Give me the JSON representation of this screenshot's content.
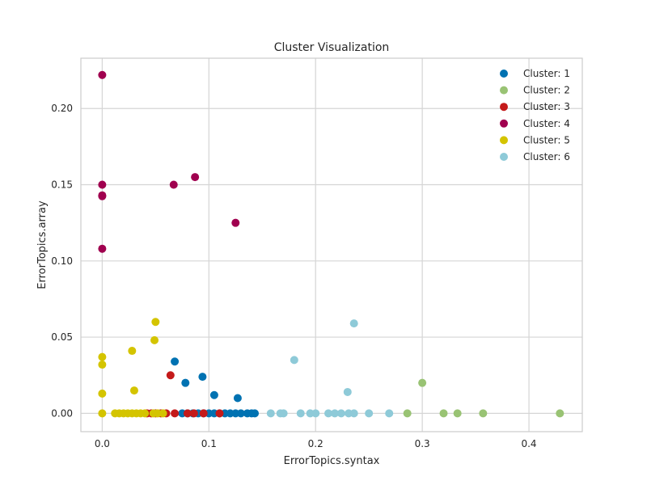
{
  "chart_data": {
    "type": "scatter",
    "title": "Cluster Visualization",
    "xlabel": "ErrorTopics.syntax",
    "ylabel": "ErrorTopics.array",
    "xlim": [
      -0.02,
      0.45
    ],
    "ylim": [
      -0.012,
      0.233
    ],
    "x_ticks": [
      0.0,
      0.1,
      0.2,
      0.3,
      0.4
    ],
    "x_tick_labels": [
      "0.0",
      "0.1",
      "0.2",
      "0.3",
      "0.4"
    ],
    "y_ticks": [
      0.0,
      0.05,
      0.1,
      0.15,
      0.2
    ],
    "y_tick_labels": [
      "0.00",
      "0.05",
      "0.10",
      "0.15",
      "0.20"
    ],
    "grid": true,
    "legend_position": "top-right",
    "series": [
      {
        "name": "Cluster: 1",
        "color": "#0072b2",
        "points": [
          [
            0.068,
            0.034
          ],
          [
            0.078,
            0.02
          ],
          [
            0.094,
            0.024
          ],
          [
            0.105,
            0.012
          ],
          [
            0.127,
            0.01
          ],
          [
            0.075,
            0.0
          ],
          [
            0.08,
            0.0
          ],
          [
            0.085,
            0.0
          ],
          [
            0.09,
            0.0
          ],
          [
            0.095,
            0.0
          ],
          [
            0.1,
            0.0
          ],
          [
            0.105,
            0.0
          ],
          [
            0.11,
            0.0
          ],
          [
            0.115,
            0.0
          ],
          [
            0.12,
            0.0
          ],
          [
            0.125,
            0.0
          ],
          [
            0.13,
            0.0
          ],
          [
            0.136,
            0.0
          ],
          [
            0.14,
            0.0
          ],
          [
            0.143,
            0.0
          ]
        ]
      },
      {
        "name": "Cluster: 2",
        "color": "#99c374",
        "points": [
          [
            0.3,
            0.02
          ],
          [
            0.286,
            0.0
          ],
          [
            0.32,
            0.0
          ],
          [
            0.333,
            0.0
          ],
          [
            0.357,
            0.0
          ],
          [
            0.429,
            0.0
          ]
        ]
      },
      {
        "name": "Cluster: 3",
        "color": "#c41a1a",
        "points": [
          [
            0.064,
            0.025
          ],
          [
            0.042,
            0.0
          ],
          [
            0.046,
            0.0
          ],
          [
            0.05,
            0.0
          ],
          [
            0.055,
            0.0
          ],
          [
            0.06,
            0.0
          ],
          [
            0.068,
            0.0
          ],
          [
            0.08,
            0.0
          ],
          [
            0.086,
            0.0
          ],
          [
            0.095,
            0.0
          ],
          [
            0.11,
            0.0
          ]
        ]
      },
      {
        "name": "Cluster: 4",
        "color": "#a0004f",
        "points": [
          [
            0.0,
            0.222
          ],
          [
            0.0,
            0.15
          ],
          [
            0.0,
            0.143
          ],
          [
            0.0,
            0.1425
          ],
          [
            0.0,
            0.108
          ],
          [
            0.067,
            0.15
          ],
          [
            0.087,
            0.155
          ],
          [
            0.125,
            0.125
          ]
        ]
      },
      {
        "name": "Cluster: 5",
        "color": "#d4c400",
        "points": [
          [
            0.0,
            0.037
          ],
          [
            0.0,
            0.032
          ],
          [
            0.0,
            0.013
          ],
          [
            0.0,
            0.0
          ],
          [
            0.028,
            0.041
          ],
          [
            0.03,
            0.015
          ],
          [
            0.05,
            0.06
          ],
          [
            0.049,
            0.048
          ],
          [
            0.012,
            0.0
          ],
          [
            0.016,
            0.0
          ],
          [
            0.02,
            0.0
          ],
          [
            0.024,
            0.0
          ],
          [
            0.028,
            0.0
          ],
          [
            0.032,
            0.0
          ],
          [
            0.036,
            0.0
          ],
          [
            0.04,
            0.0
          ],
          [
            0.048,
            0.0
          ],
          [
            0.052,
            0.0
          ],
          [
            0.057,
            0.0
          ]
        ]
      },
      {
        "name": "Cluster: 6",
        "color": "#8ecad8",
        "points": [
          [
            0.18,
            0.035
          ],
          [
            0.236,
            0.059
          ],
          [
            0.23,
            0.014
          ],
          [
            0.158,
            0.0
          ],
          [
            0.167,
            0.0
          ],
          [
            0.17,
            0.0
          ],
          [
            0.186,
            0.0
          ],
          [
            0.195,
            0.0
          ],
          [
            0.2,
            0.0
          ],
          [
            0.212,
            0.0
          ],
          [
            0.218,
            0.0
          ],
          [
            0.224,
            0.0
          ],
          [
            0.231,
            0.0
          ],
          [
            0.236,
            0.0
          ],
          [
            0.25,
            0.0
          ],
          [
            0.269,
            0.0
          ]
        ]
      }
    ]
  }
}
